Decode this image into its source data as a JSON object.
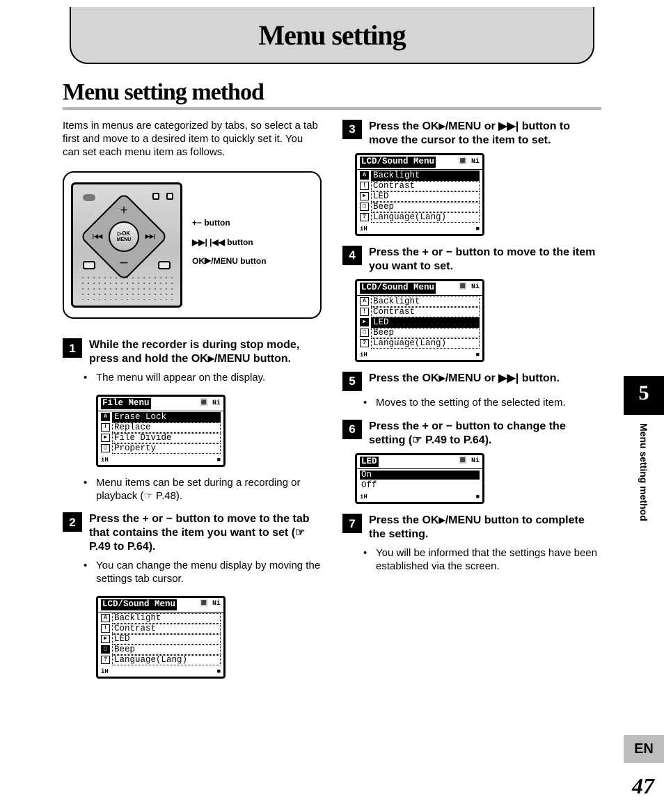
{
  "header": {
    "title": "Menu setting"
  },
  "section": {
    "title": "Menu setting method"
  },
  "intro": "Items in menus are categorized by tabs, so select a tab first and move to a desired item to quickly set it. You can set each menu item as follows.",
  "device": {
    "labels": {
      "pm": "+− button",
      "ffrw": "▶▶|  |◀◀ button",
      "okmenu_pre": "OK",
      "okmenu_mid": "▶",
      "okmenu_post": "/MENU button"
    },
    "wheel": {
      "ok": "▷OK",
      "menu": "MENU",
      "left": "|◀◀",
      "right": "▶▶|",
      "up": "＋",
      "down": "－"
    }
  },
  "steps": {
    "s1": {
      "num": "1",
      "text_pre": "While the recorder is during stop mode, press and hold the ",
      "ok": "OK",
      "play": "▶",
      "menu": "/MENU",
      "text_post": " button.",
      "bullet1": "The menu will appear on the display.",
      "bullet2_pre": "Menu items can be set during a recording or playback (",
      "bullet2_sym": "☞",
      "bullet2_post": " P.48)."
    },
    "s2": {
      "num": "2",
      "text_pre": "Press the ",
      "plus": "+",
      "or": " or ",
      "minus": "−",
      "text_mid": " button to move to the tab that contains the item you want to set (",
      "sym": "☞",
      "text_post": " P.49 to P.64).",
      "bullet": "You can change the menu display by moving the settings tab cursor."
    },
    "s3": {
      "num": "3",
      "text_pre": "Press the ",
      "ok": "OK",
      "play": "▶",
      "menu": "/MENU",
      "or": " or ",
      "ff": "▶▶|",
      "text_post": " button to move the cursor to the item to set."
    },
    "s4": {
      "num": "4",
      "text_pre": "Press the ",
      "plus": "+",
      "or": " or ",
      "minus": "−",
      "text_post": " button to move to the item you want to set."
    },
    "s5": {
      "num": "5",
      "text_pre": "Press the ",
      "ok": "OK",
      "play": "▶",
      "menu": "/MENU",
      "or": " or ",
      "ff": "▶▶|",
      "text_post": " button.",
      "bullet": "Moves to the setting of the selected item."
    },
    "s6": {
      "num": "6",
      "text_pre": "Press the ",
      "plus": "+",
      "or": " or ",
      "minus": "−",
      "text_mid": " button to change the setting (",
      "sym": "☞",
      "text_post": " P.49 to P.64)."
    },
    "s7": {
      "num": "7",
      "text_pre": "Press the ",
      "ok": "OK",
      "play": "▶",
      "menu": "/MENU",
      "text_post": " button to complete the setting.",
      "bullet": "You will be informed that the settings have been established via the screen."
    }
  },
  "lcd": {
    "battery": "🔳 Ni",
    "file_menu": {
      "title": "File Menu",
      "rows": [
        "Erase Lock",
        "Replace",
        "File Divide",
        "Property"
      ],
      "icons": [
        "A",
        "!",
        "▶",
        "▢"
      ],
      "tabsel": 0,
      "sel": 0
    },
    "sound_menu_1": {
      "title": "LCD/Sound Menu",
      "rows": [
        "Backlight",
        "Contrast",
        "LED",
        "Beep",
        "Language(Lang)"
      ],
      "icons": [
        "A",
        "!",
        "▶",
        "▢",
        "?"
      ],
      "tabsel": 3,
      "sel": -1
    },
    "sound_menu_2": {
      "title": "LCD/Sound Menu",
      "rows": [
        "Backlight",
        "Contrast",
        "LED",
        "Beep",
        "Language(Lang)"
      ],
      "icons": [
        "A",
        "!",
        "▶",
        "▢",
        "?"
      ],
      "tabsel": 0,
      "sel": 0
    },
    "sound_menu_3": {
      "title": "LCD/Sound Menu",
      "rows": [
        "Backlight",
        "Contrast",
        "LED",
        "Beep",
        "Language(Lang)"
      ],
      "icons": [
        "A",
        "!",
        "▶",
        "▢",
        "?"
      ],
      "tabsel": 2,
      "sel": 2
    },
    "led_menu": {
      "title": "LED",
      "rows": [
        "On",
        "Off"
      ],
      "sel": 0
    }
  },
  "side": {
    "chapter": "5",
    "label": "Menu setting method",
    "lang": "EN",
    "page": "47"
  }
}
